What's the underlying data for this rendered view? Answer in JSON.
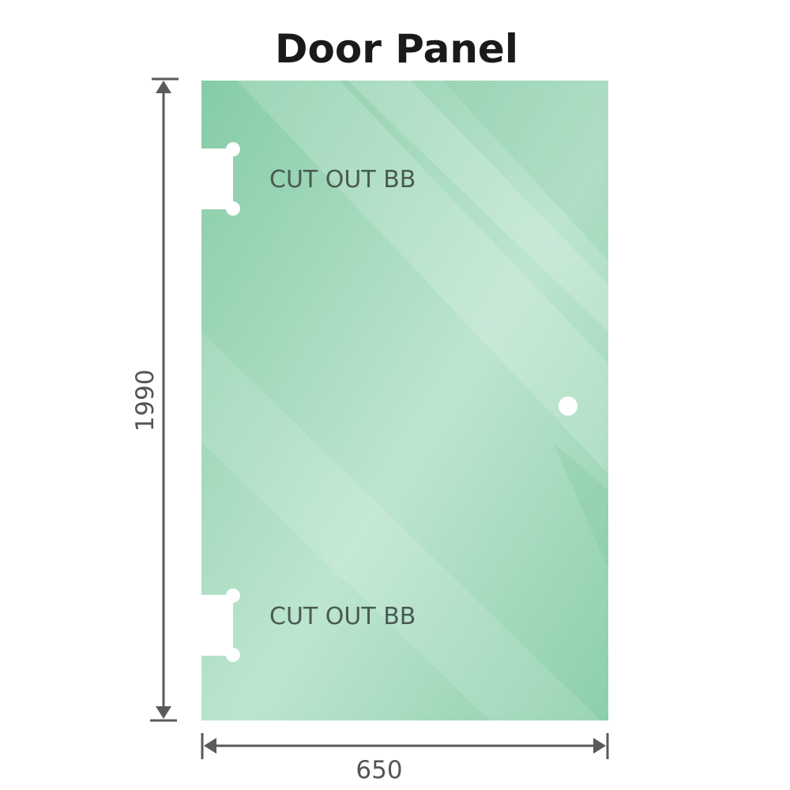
{
  "title": "Door Panel",
  "cutouts": [
    {
      "label": "CUT OUT BB"
    },
    {
      "label": "CUT OUT BB"
    }
  ],
  "dimensions": {
    "height": "1990",
    "width": "650"
  },
  "colors": {
    "glass": "#8fd0ad",
    "glass_light": "#bfe6d1",
    "dimension_line": "#5a5a5a"
  }
}
